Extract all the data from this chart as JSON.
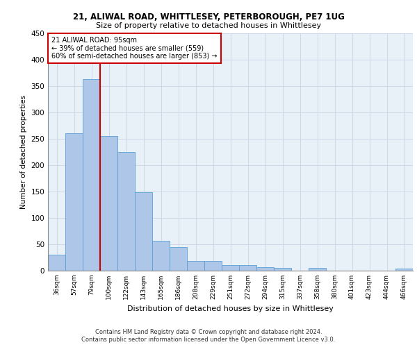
{
  "title1": "21, ALIWAL ROAD, WHITTLESEY, PETERBOROUGH, PE7 1UG",
  "title2": "Size of property relative to detached houses in Whittlesey",
  "xlabel": "Distribution of detached houses by size in Whittlesey",
  "ylabel": "Number of detached properties",
  "footer1": "Contains HM Land Registry data © Crown copyright and database right 2024.",
  "footer2": "Contains public sector information licensed under the Open Government Licence v3.0.",
  "bin_labels": [
    "36sqm",
    "57sqm",
    "79sqm",
    "100sqm",
    "122sqm",
    "143sqm",
    "165sqm",
    "186sqm",
    "208sqm",
    "229sqm",
    "251sqm",
    "272sqm",
    "294sqm",
    "315sqm",
    "337sqm",
    "358sqm",
    "380sqm",
    "401sqm",
    "423sqm",
    "444sqm",
    "466sqm"
  ],
  "bar_values": [
    30,
    260,
    362,
    255,
    225,
    148,
    57,
    45,
    18,
    18,
    10,
    10,
    7,
    5,
    0,
    5,
    0,
    0,
    0,
    0,
    4
  ],
  "bar_color": "#aec6e8",
  "bar_edge_color": "#5a9fd4",
  "grid_color": "#d0d8e8",
  "background_color": "#e8f0f8",
  "red_line_bin_index": 2.5,
  "annotation_title": "21 ALIWAL ROAD: 95sqm",
  "annotation_line1": "← 39% of detached houses are smaller (559)",
  "annotation_line2": "60% of semi-detached houses are larger (853) →",
  "annotation_color": "#cc0000",
  "ylim": [
    0,
    450
  ],
  "yticks": [
    0,
    50,
    100,
    150,
    200,
    250,
    300,
    350,
    400,
    450
  ]
}
